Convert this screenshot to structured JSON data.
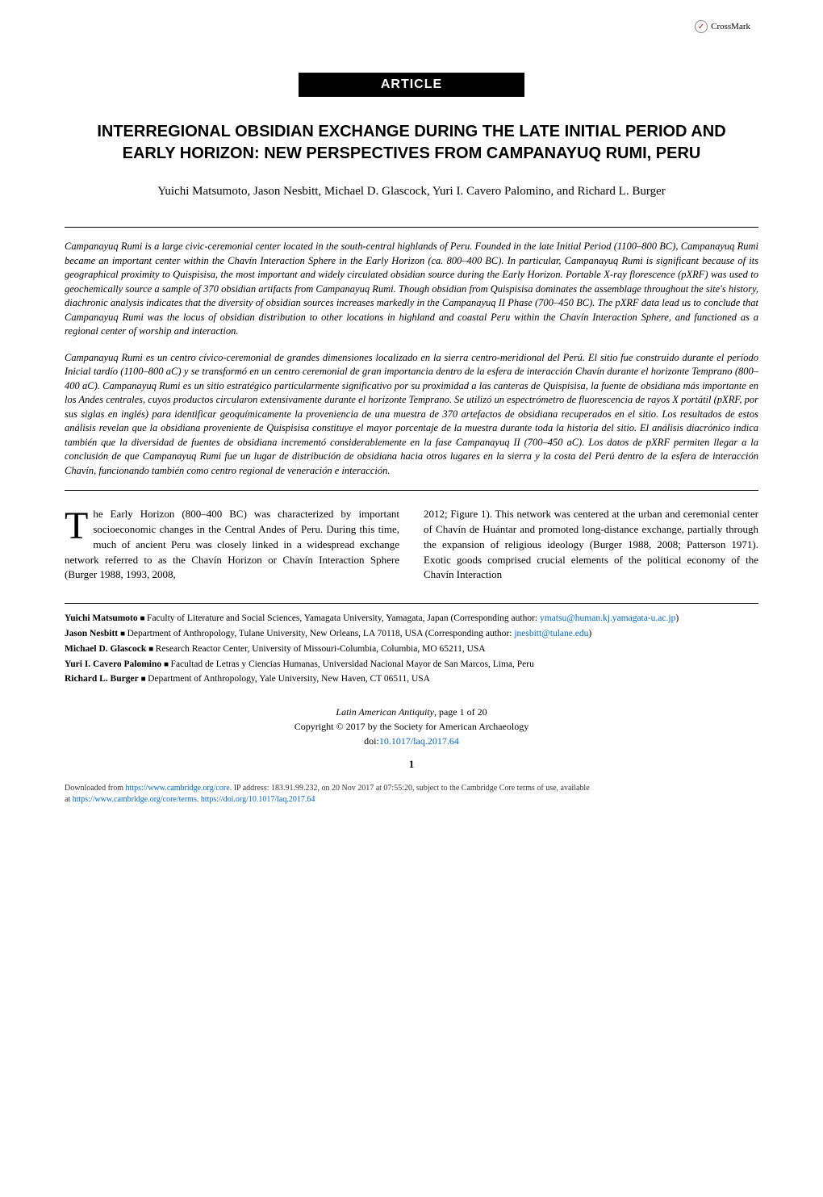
{
  "crossmark": {
    "label": "CrossMark"
  },
  "banner": {
    "label": "ARTICLE"
  },
  "title": "INTERREGIONAL OBSIDIAN EXCHANGE DURING THE LATE INITIAL PERIOD AND EARLY HORIZON: NEW PERSPECTIVES FROM CAMPANAYUQ RUMI, PERU",
  "authors": "Yuichi Matsumoto, Jason Nesbitt, Michael D. Glascock, Yuri I. Cavero Palomino, and Richard L. Burger",
  "abstract_en": "Campanayuq Rumi is a large civic-ceremonial center located in the south-central highlands of Peru. Founded in the late Initial Period (1100–800 BC), Campanayuq Rumi became an important center within the Chavín Interaction Sphere in the Early Horizon (ca. 800–400 BC). In particular, Campanayuq Rumi is significant because of its geographical proximity to Quispisisa, the most important and widely circulated obsidian source during the Early Horizon. Portable X-ray florescence (pXRF) was used to geochemically source a sample of 370 obsidian artifacts from Campanayuq Rumi. Though obsidian from Quispisisa dominates the assemblage throughout the site's history, diachronic analysis indicates that the diversity of obsidian sources increases markedly in the Campanayuq II Phase (700–450 BC). The pXRF data lead us to conclude that Campanayuq Rumi was the locus of obsidian distribution to other locations in highland and coastal Peru within the Chavín Interaction Sphere, and functioned as a regional center of worship and interaction.",
  "abstract_es": "Campanayuq Rumi es un centro cívico-ceremonial de grandes dimensiones localizado en la sierra centro-meridional del Perú. El sitio fue construido durante el período Inicial tardío (1100–800 aC) y se transformó en un centro ceremonial de gran importancia dentro de la esfera de interacción Chavín durante el horizonte Temprano (800–400 aC). Campanayuq Rumi es un sitio estratégico particularmente significativo por su proximidad a las canteras de Quispisisa, la fuente de obsidiana más importante en los Andes centrales, cuyos productos circularon extensivamente durante el horizonte Temprano. Se utilizó un espectrómetro de fluorescencia de rayos X portátil (pXRF, por sus siglas en inglés) para identificar geoquímicamente la proveniencia de una muestra de 370 artefactos de obsidiana recuperados en el sitio. Los resultados de estos análisis revelan que la obsidiana proveniente de Quispisisa constituye el mayor porcentaje de la muestra durante toda la historia del sitio. El análisis diacrónico indica también que la diversidad de fuentes de obsidiana incrementó considerablemente en la fase Campanayuq II (700–450 aC). Los datos de pXRF permiten llegar a la conclusión de que Campanayuq Rumi fue un lugar de distribución de obsidiana hacia otros lugares en la sierra y la costa del Perú dentro de la esfera de interacción Chavín, funcionando también como centro regional de veneración e interacción.",
  "body": {
    "col1": "he Early Horizon (800–400 BC) was characterized by important socioeconomic changes in the Central Andes of Peru. During this time, much of ancient Peru was closely linked in a widespread exchange network referred to as the Chavín Horizon or Chavín Interaction Sphere (Burger 1988, 1993, 2008,",
    "col2": "2012; Figure 1). This network was centered at the urban and ceremonial center of Chavín de Huántar and promoted long-distance exchange, partially through the expansion of religious ideology (Burger 1988, 2008; Patterson 1971). Exotic goods comprised crucial elements of the political economy of the Chavín Interaction"
  },
  "affiliations": [
    {
      "name": "Yuichi Matsumoto",
      "text": "Faculty of Literature and Social Sciences, Yamagata University, Yamagata, Japan (Corresponding author:",
      "email": "ymatsu@human.kj.yamagata-u.ac.jp",
      "closing": ")"
    },
    {
      "name": "Jason Nesbitt",
      "text": "Department of Anthropology, Tulane University, New Orleans, LA 70118, USA (Corresponding author:",
      "email": "jnesbitt@tulane.edu",
      "closing": ")"
    },
    {
      "name": "Michael D. Glascock",
      "text": "Research Reactor Center, University of Missouri-Columbia, Columbia, MO 65211, USA",
      "email": "",
      "closing": ""
    },
    {
      "name": "Yuri I. Cavero Palomino",
      "text": "Facultad de Letras y Ciencias Humanas, Universidad Nacional Mayor de San Marcos, Lima, Peru",
      "email": "",
      "closing": ""
    },
    {
      "name": "Richard L. Burger",
      "text": "Department of Anthropology, Yale University, New Haven, CT 06511, USA",
      "email": "",
      "closing": ""
    }
  ],
  "journal": {
    "name": "Latin American Antiquity",
    "pages": ", page 1 of 20",
    "copyright": "Copyright © 2017 by the Society for American Archaeology",
    "doi_label": "doi:",
    "doi": "10.1017/laq.2017.64"
  },
  "page_number": "1",
  "footer": {
    "line1_prefix": "Downloaded from ",
    "url1": "https://www.cambridge.org/core",
    "line1_mid": ". IP address: 183.91.99.232, on 20 Nov 2017 at 07:55:20, subject to the Cambridge Core terms of use, available",
    "line2_prefix": "at ",
    "url2": "https://www.cambridge.org/core/terms",
    "line2_mid": ". ",
    "url3": "https://doi.org/10.1017/laq.2017.64"
  }
}
